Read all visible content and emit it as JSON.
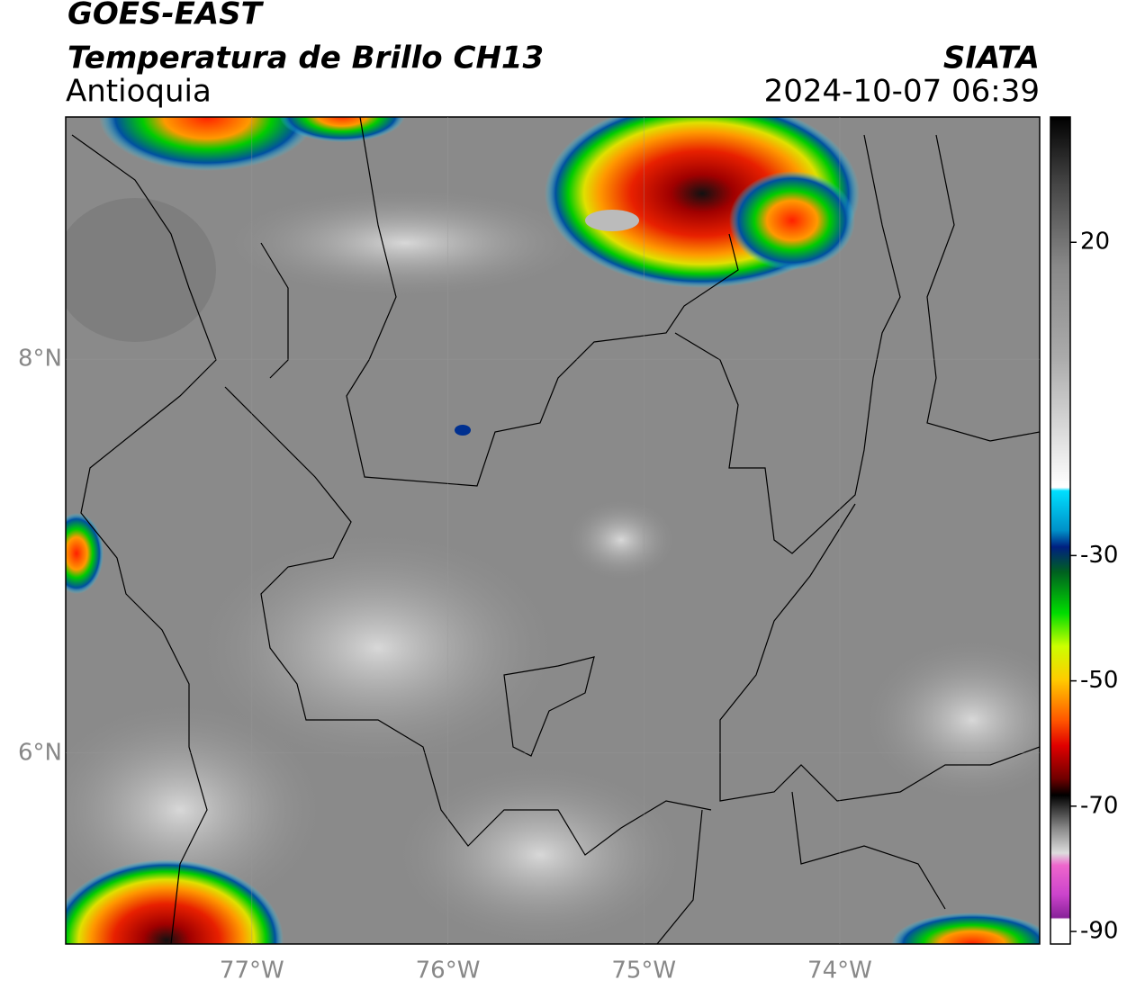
{
  "header": {
    "title": "GOES-EAST",
    "subtitle": "Temperatura de Brillo CH13",
    "region": "Antioquia",
    "agency": "SIATA",
    "datetime": "2024-10-07 06:39"
  },
  "map": {
    "xlim": [
      -77.95,
      -72.98
    ],
    "ylim": [
      5.03,
      9.23
    ],
    "xticks": [
      {
        "value": -77,
        "label": "77°W"
      },
      {
        "value": -76,
        "label": "76°W"
      },
      {
        "value": -75,
        "label": "75°W"
      },
      {
        "value": -74,
        "label": "74°W"
      }
    ],
    "yticks": [
      {
        "value": 8,
        "label": "8°N"
      },
      {
        "value": 6,
        "label": "6°N"
      }
    ]
  },
  "colorbar": {
    "clim": [
      -92,
      40
    ],
    "ticks": [
      20,
      -30,
      -50,
      -70,
      -90
    ]
  }
}
